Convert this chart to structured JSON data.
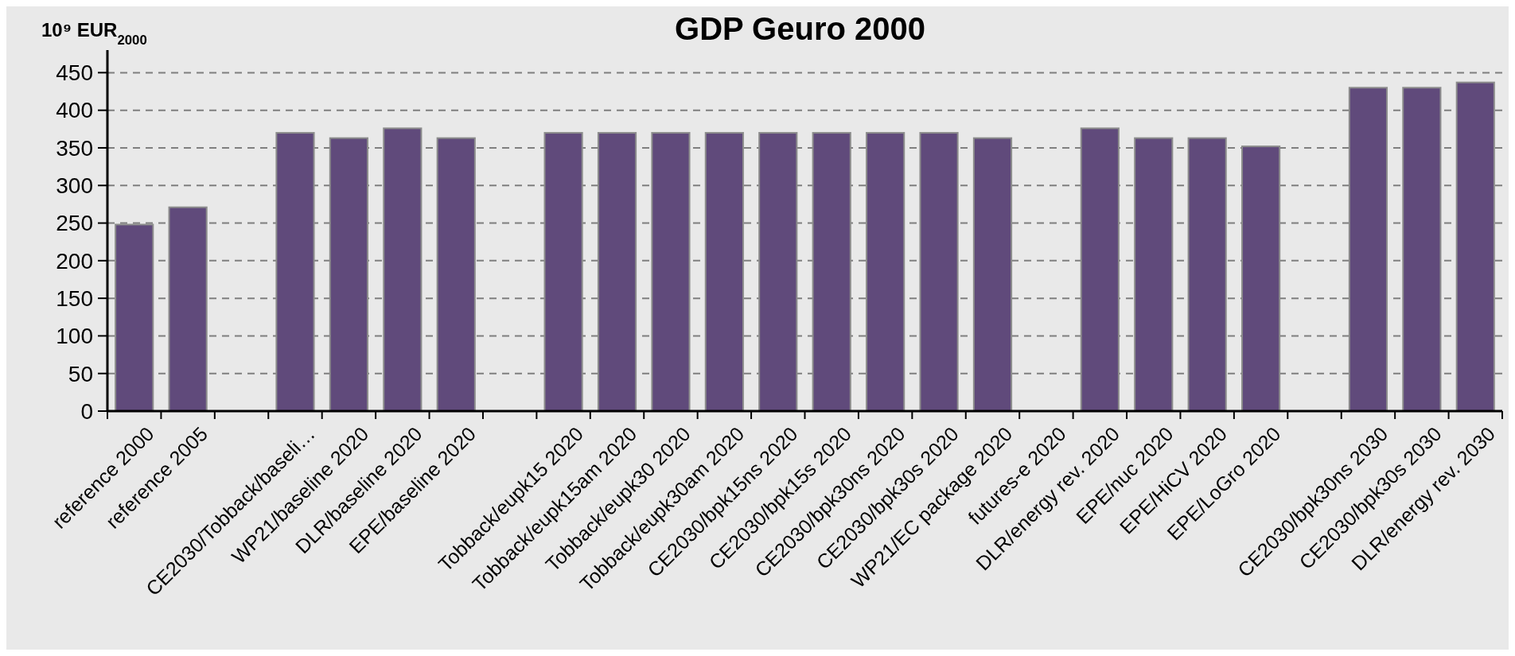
{
  "chart_data": {
    "type": "bar",
    "title": "GDP Geuro 2000",
    "ylabel": "10⁹ EUR$_{2000}$",
    "categories": [
      "reference 2000",
      "reference 2005",
      null,
      "CE2030/Tobback/baseli…",
      "WP21/baseline 2020",
      "DLR/baseline 2020",
      "EPE/baseline 2020",
      null,
      "Tobback/eupk15 2020",
      "Tobback/eupk15am 2020",
      "Tobback/eupk30 2020",
      "Tobback/eupk30am 2020",
      "CE2030/bpk15ns 2020",
      "CE2030/bpk15s 2020",
      "CE2030/bpk30ns 2020",
      "CE2030/bpk30s 2020",
      "WP21/EC package 2020",
      "futures-e 2020",
      "DLR/energy rev. 2020",
      "EPE/nuc 2020",
      "EPE/HiCV 2020",
      "EPE/LoGro 2020",
      null,
      "CE2030/bpk30ns 2030",
      "CE2030/bpk30s 2030",
      "DLR/energy rev. 2030"
    ],
    "values": [
      248,
      271,
      null,
      370,
      363,
      376,
      363,
      null,
      370,
      370,
      370,
      370,
      370,
      370,
      370,
      370,
      363,
      null,
      376,
      363,
      363,
      352,
      null,
      430,
      430,
      437
    ],
    "color": "#604a7b",
    "ylim": [
      0,
      480
    ],
    "yticks": [
      0,
      50,
      100,
      150,
      200,
      250,
      300,
      350,
      400,
      450
    ],
    "grid": "y"
  }
}
